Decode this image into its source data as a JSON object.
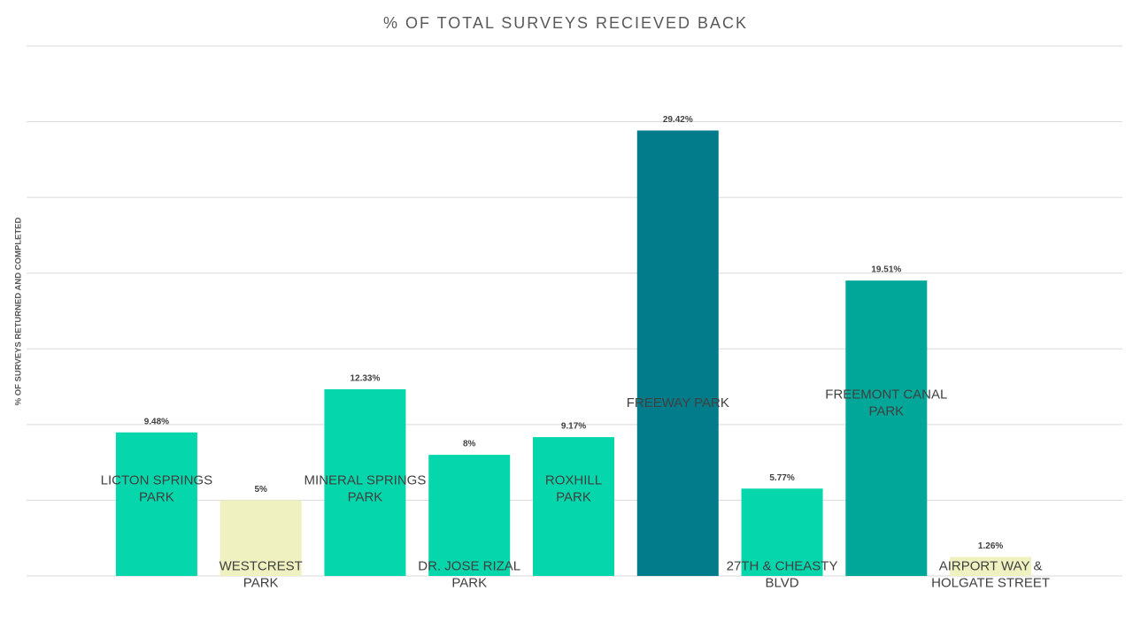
{
  "chart_data": {
    "type": "bar",
    "title": "% OF TOTAL SURVEYS RECIEVED BACK",
    "y_label": "% OF SURVEYS RETURNED AND COMPLETED",
    "categories": [
      "LICTON SPRINGS\nPARK",
      "WESTCREST\nPARK",
      "MINERAL SPRINGS\nPARK",
      "DR. JOSE RIZAL\nPARK",
      "ROXHILL\nPARK",
      "FREEWAY PARK",
      "27TH & CHEASTY\nBLVD",
      "FREEMONT CANAL\nPARK",
      "AIRPORT WAY &\nHOLGATE STREET"
    ],
    "values": [
      9.48,
      5,
      12.33,
      8,
      9.17,
      29.42,
      5.77,
      19.51,
      1.26
    ],
    "value_labels": [
      "9.48%",
      "5%",
      "12.33%",
      "8%",
      "9.17%",
      "29.42%",
      "5.77%",
      "19.51%",
      "1.26%"
    ],
    "colors": [
      "#05d6ab",
      "#eff2c0",
      "#05d6ab",
      "#05d6ab",
      "#05d6ab",
      "#027b8a",
      "#05d6ab",
      "#01a89a",
      "#eff2c0"
    ],
    "ylim": [
      0,
      35
    ],
    "yticks": [
      0,
      5,
      10,
      15,
      20,
      25,
      30,
      35
    ],
    "grid": true
  }
}
